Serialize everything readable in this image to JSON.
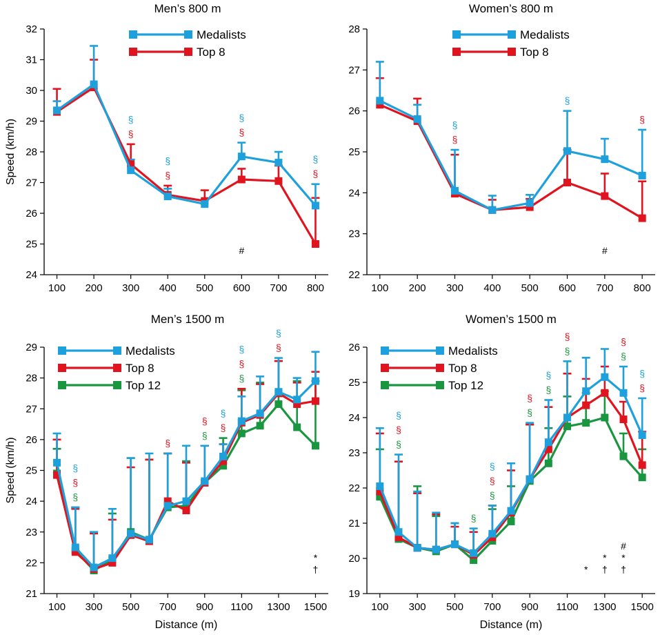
{
  "colors": {
    "Medalists": "#1ea0dc",
    "Top 8": "#e0141e",
    "Top 12": "#1a9641",
    "axis": "#000000"
  },
  "chart_data": [
    {
      "type": "line",
      "title": "Men’s 800 m",
      "xlabel": "",
      "ylabel": "Speed (km/h)",
      "ylim": [
        24,
        32
      ],
      "yticks": [
        24,
        25,
        26,
        27,
        28,
        29,
        30,
        31,
        32
      ],
      "xticks": [
        "100",
        "200",
        "300",
        "400",
        "500",
        "600",
        "700",
        "800"
      ],
      "x": [
        100,
        200,
        300,
        400,
        500,
        600,
        700,
        800
      ],
      "series": [
        {
          "name": "Top 8",
          "values": [
            29.3,
            30.1,
            27.6,
            26.6,
            26.4,
            27.1,
            27.05,
            25.0
          ],
          "err": [
            0.75,
            0.9,
            0.65,
            0.3,
            0.35,
            0.35,
            0.5,
            1.5
          ]
        },
        {
          "name": "Medalists",
          "values": [
            29.35,
            30.2,
            27.4,
            26.55,
            26.3,
            27.85,
            27.65,
            26.25
          ],
          "err": [
            0.3,
            1.25,
            0.35,
            0.25,
            0.15,
            0.45,
            0.35,
            0.7
          ]
        }
      ],
      "legend": [
        "Medalists",
        "Top 8"
      ],
      "legend_position": "top",
      "annotations": [
        {
          "x": 300,
          "marks": [
            {
              "text": "§",
              "color": "Medalists"
            },
            {
              "text": "§",
              "color": "Top 8"
            }
          ]
        },
        {
          "x": 400,
          "marks": [
            {
              "text": "§",
              "color": "Medalists"
            },
            {
              "text": "§",
              "color": "Top 8"
            }
          ]
        },
        {
          "x": 600,
          "marks": [
            {
              "text": "§",
              "color": "Medalists"
            },
            {
              "text": "§",
              "color": "Top 8"
            }
          ]
        },
        {
          "x": 800,
          "marks": [
            {
              "text": "§",
              "color": "Medalists"
            },
            {
              "text": "§",
              "color": "Top 8"
            }
          ]
        }
      ],
      "bottom_marks": [
        {
          "x": 600,
          "lines": [
            "#"
          ]
        }
      ]
    },
    {
      "type": "line",
      "title": "Women’s 800 m",
      "xlabel": "",
      "ylabel": "",
      "ylim": [
        22,
        28
      ],
      "yticks": [
        22,
        23,
        24,
        25,
        26,
        27,
        28
      ],
      "xticks": [
        "100",
        "200",
        "300",
        "400",
        "500",
        "600",
        "700",
        "800"
      ],
      "x": [
        100,
        200,
        300,
        400,
        500,
        600,
        700,
        800
      ],
      "series": [
        {
          "name": "Top 8",
          "values": [
            26.15,
            25.75,
            23.98,
            23.58,
            23.65,
            24.25,
            23.92,
            23.38
          ],
          "err": [
            0.65,
            0.55,
            0.95,
            0.25,
            0.2,
            0.8,
            0.55,
            0.9
          ]
        },
        {
          "name": "Medalists",
          "values": [
            26.25,
            25.8,
            24.05,
            23.58,
            23.75,
            25.02,
            24.82,
            24.42
          ],
          "err": [
            0.95,
            0.35,
            1.0,
            0.35,
            0.2,
            0.98,
            0.5,
            1.12
          ]
        }
      ],
      "legend": [
        "Medalists",
        "Top 8"
      ],
      "legend_position": "top",
      "annotations": [
        {
          "x": 300,
          "marks": [
            {
              "text": "§",
              "color": "Medalists"
            },
            {
              "text": "§",
              "color": "Top 8"
            }
          ]
        },
        {
          "x": 600,
          "marks": [
            {
              "text": "§",
              "color": "Medalists"
            }
          ]
        },
        {
          "x": 800,
          "marks": [
            {
              "text": "§",
              "color": "Top 8"
            }
          ]
        }
      ],
      "bottom_marks": [
        {
          "x": 700,
          "lines": [
            "#"
          ]
        }
      ]
    },
    {
      "type": "line",
      "title": "Men’s 1500 m",
      "xlabel": "Distance (m)",
      "ylabel": "Speed (km/h)",
      "ylim": [
        21,
        29
      ],
      "yticks": [
        21,
        22,
        23,
        24,
        25,
        26,
        27,
        28,
        29
      ],
      "xticks": [
        "100",
        "300",
        "500",
        "700",
        "900",
        "1100",
        "1300",
        "1500"
      ],
      "x": [
        100,
        200,
        300,
        400,
        500,
        600,
        700,
        800,
        900,
        1000,
        1100,
        1200,
        1300,
        1400,
        1500
      ],
      "series": [
        {
          "name": "Top 12",
          "values": [
            24.9,
            22.4,
            21.75,
            22.1,
            23.0,
            22.75,
            23.8,
            23.85,
            24.6,
            25.15,
            26.2,
            26.45,
            27.15,
            26.4,
            25.8
          ],
          "err": [
            0.8,
            1.4,
            1.25,
            1.5,
            2.4,
            2.6,
            1.75,
            1.45,
            1.2,
            0.9,
            1.4,
            1.4,
            1.4,
            1.5,
            2.1
          ]
        },
        {
          "name": "Top 8",
          "values": [
            24.85,
            22.35,
            21.8,
            22.0,
            22.9,
            22.7,
            24.0,
            23.7,
            24.6,
            25.3,
            26.55,
            26.8,
            27.5,
            27.15,
            27.25
          ],
          "err": [
            1.15,
            1.4,
            1.15,
            1.4,
            2.2,
            2.65,
            1.55,
            1.55,
            1.2,
            0.55,
            1.1,
            1.0,
            1.05,
            0.7,
            0.95
          ]
        },
        {
          "name": "Medalists",
          "values": [
            25.25,
            22.5,
            21.85,
            22.15,
            22.95,
            22.75,
            23.85,
            24.0,
            24.65,
            25.45,
            26.6,
            26.85,
            27.55,
            27.3,
            27.9
          ],
          "err": [
            0.95,
            1.3,
            1.15,
            1.6,
            2.45,
            2.8,
            1.7,
            1.8,
            1.15,
            0.4,
            0.8,
            1.2,
            1.1,
            0.7,
            0.95
          ]
        }
      ],
      "legend": [
        "Medalists",
        "Top 8",
        "Top 12"
      ],
      "legend_position": "top-left",
      "annotations": [
        {
          "x": 200,
          "marks": [
            {
              "text": "§",
              "color": "Medalists"
            },
            {
              "text": "§",
              "color": "Top 8"
            },
            {
              "text": "§",
              "color": "Top 12"
            }
          ]
        },
        {
          "x": 700,
          "marks": [
            {
              "text": "§",
              "color": "Top 8"
            }
          ]
        },
        {
          "x": 900,
          "marks": [
            {
              "text": "§",
              "color": "Top 8"
            },
            {
              "text": "§",
              "color": "Top 12"
            }
          ]
        },
        {
          "x": 1000,
          "marks": [
            {
              "text": "§",
              "color": "Medalists"
            },
            {
              "text": "§",
              "color": "Top 8"
            }
          ]
        },
        {
          "x": 1100,
          "marks": [
            {
              "text": "§",
              "color": "Medalists"
            },
            {
              "text": "§",
              "color": "Top 8"
            },
            {
              "text": "§",
              "color": "Top 12"
            }
          ]
        },
        {
          "x": 1300,
          "marks": [
            {
              "text": "§",
              "color": "Medalists"
            },
            {
              "text": "§",
              "color": "Top 8"
            }
          ]
        }
      ],
      "bottom_marks": [
        {
          "x": 1500,
          "lines": [
            "*",
            "†"
          ]
        }
      ]
    },
    {
      "type": "line",
      "title": "Women’s 1500 m",
      "xlabel": "Distance (m)",
      "ylabel": "",
      "ylim": [
        19,
        26
      ],
      "yticks": [
        19,
        20,
        21,
        22,
        23,
        24,
        25,
        26
      ],
      "xticks": [
        "100",
        "300",
        "500",
        "700",
        "900",
        "1100",
        "1300",
        "1500"
      ],
      "x": [
        100,
        200,
        300,
        400,
        500,
        600,
        700,
        800,
        900,
        1000,
        1100,
        1200,
        1300,
        1400,
        1500
      ],
      "series": [
        {
          "name": "Top 12",
          "values": [
            21.75,
            20.55,
            20.3,
            20.2,
            20.4,
            19.95,
            20.5,
            21.05,
            22.2,
            22.7,
            23.75,
            23.85,
            24.0,
            22.9,
            22.3
          ],
          "err": [
            1.35,
            2.2,
            1.75,
            1.0,
            0.6,
            0.8,
            0.9,
            1.0,
            1.6,
            1.0,
            0.85,
            0.85,
            0.75,
            0.65,
            0.8
          ]
        },
        {
          "name": "Top 8",
          "values": [
            21.9,
            20.6,
            20.3,
            20.25,
            20.4,
            20.1,
            20.6,
            21.3,
            22.25,
            23.1,
            24.0,
            24.35,
            24.7,
            23.95,
            22.65
          ],
          "err": [
            1.65,
            2.15,
            1.55,
            1.0,
            0.5,
            0.65,
            0.9,
            1.2,
            1.55,
            1.2,
            1.25,
            0.75,
            0.75,
            0.5,
            0.95
          ]
        },
        {
          "name": "Medalists",
          "values": [
            22.05,
            20.75,
            20.3,
            20.25,
            20.4,
            20.15,
            20.7,
            21.35,
            22.25,
            23.3,
            24.0,
            24.75,
            25.15,
            24.7,
            23.5
          ],
          "err": [
            1.65,
            2.2,
            1.6,
            1.05,
            0.6,
            0.7,
            0.8,
            1.35,
            1.6,
            1.2,
            1.6,
            0.95,
            0.8,
            0.75,
            1.05
          ]
        }
      ],
      "legend": [
        "Medalists",
        "Top 8",
        "Top 12"
      ],
      "legend_position": "top-left",
      "annotations": [
        {
          "x": 200,
          "marks": [
            {
              "text": "§",
              "color": "Medalists"
            },
            {
              "text": "§",
              "color": "Top 8"
            },
            {
              "text": "§",
              "color": "Top 12"
            }
          ]
        },
        {
          "x": 600,
          "marks": [
            {
              "text": "§",
              "color": "Top 12"
            }
          ]
        },
        {
          "x": 700,
          "marks": [
            {
              "text": "§",
              "color": "Medalists"
            },
            {
              "text": "§",
              "color": "Top 8"
            },
            {
              "text": "§",
              "color": "Top 12"
            }
          ]
        },
        {
          "x": 900,
          "marks": [
            {
              "text": "§",
              "color": "Top 8"
            },
            {
              "text": "§",
              "color": "Top 12"
            }
          ]
        },
        {
          "x": 1000,
          "marks": [
            {
              "text": "§",
              "color": "Medalists"
            },
            {
              "text": "§",
              "color": "Top 12"
            }
          ]
        },
        {
          "x": 1100,
          "marks": [
            {
              "text": "§",
              "color": "Top 8"
            },
            {
              "text": "§",
              "color": "Top 12"
            }
          ]
        },
        {
          "x": 1400,
          "marks": [
            {
              "text": "§",
              "color": "Top 8"
            },
            {
              "text": "§",
              "color": "Top 12"
            }
          ]
        },
        {
          "x": 1500,
          "marks": [
            {
              "text": "§",
              "color": "Medalists"
            },
            {
              "text": "§",
              "color": "Top 8"
            }
          ]
        }
      ],
      "bottom_marks": [
        {
          "x": 1200,
          "lines": [
            "*"
          ]
        },
        {
          "x": 1300,
          "lines": [
            "*",
            "†"
          ]
        },
        {
          "x": 1400,
          "lines": [
            "#",
            "*",
            "†"
          ]
        }
      ]
    }
  ]
}
